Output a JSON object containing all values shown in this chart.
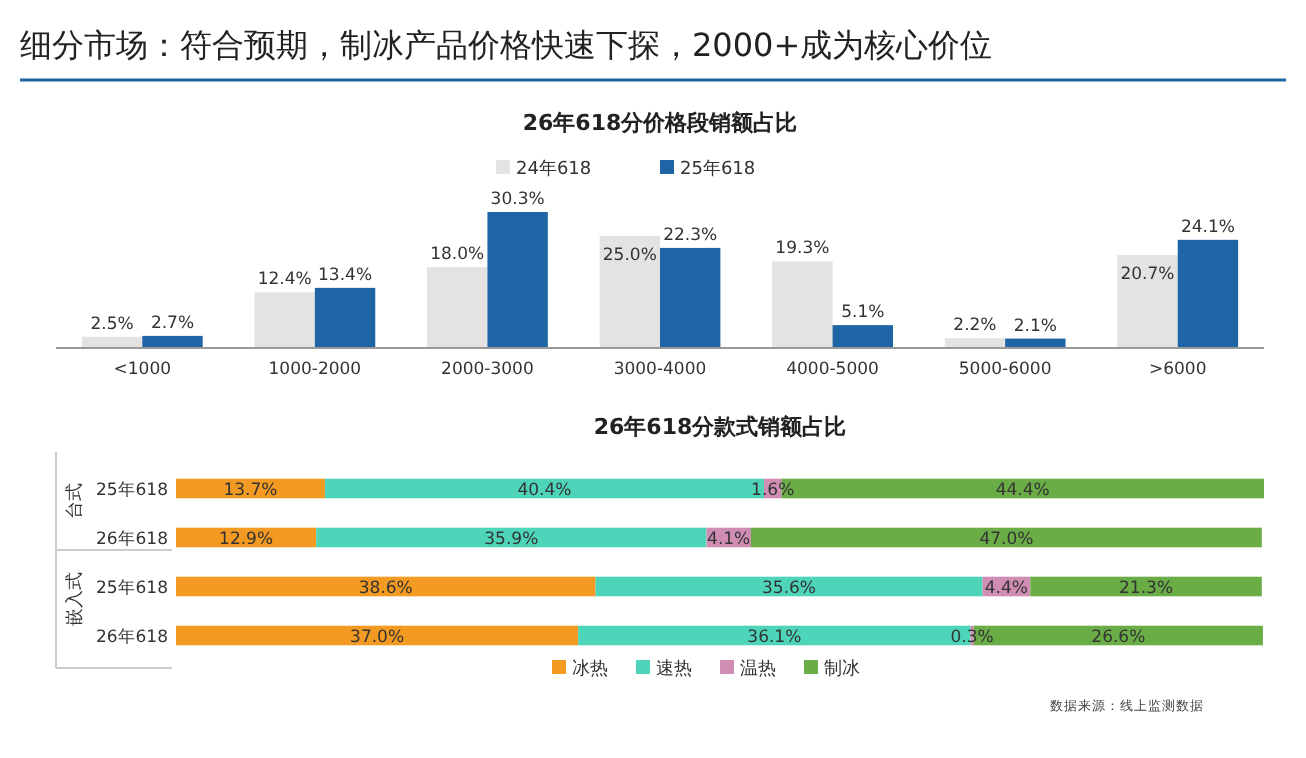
{
  "chart_data": [
    {
      "type": "bar",
      "title": "细分市场：符合预期，制冰产品价格快速下探，2000+成为核心价位",
      "subtitle": "26年618分价格段销额占比",
      "categories": [
        "<1000",
        "1000-2000",
        "2000-3000",
        "3000-4000",
        "4000-5000",
        "5000-6000",
        ">6000"
      ],
      "legend": "top",
      "grid": false,
      "series": [
        {
          "name": "24年618",
          "color": "#e3e3e3",
          "values": [
            2.5,
            12.4,
            18.0,
            25.0,
            19.3,
            2.2,
            20.7
          ],
          "value_labels": [
            "2.5%",
            "12.4%",
            "18.0%",
            "25.0%",
            "19.3%",
            "2.2%",
            "20.7%"
          ]
        },
        {
          "name": "25年618",
          "color": "#1f65a5",
          "values": [
            2.7,
            13.4,
            30.3,
            22.3,
            5.1,
            2.1,
            24.1
          ],
          "value_labels": [
            "2.7%",
            "13.4%",
            "30.3%",
            "22.3%",
            "5.1%",
            "2.1%",
            "24.1%"
          ]
        }
      ]
    },
    {
      "type": "bar",
      "orientation": "horizontal",
      "stacked": true,
      "title": "26年618分款式销额占比",
      "categories": [
        "25年618",
        "26年618",
        "25年618",
        "26年618"
      ],
      "legend": "bottom",
      "annotations": [
        "台式",
        "嵌入式",
        "数据来源：线上监测数据"
      ],
      "series": [
        {
          "name": "冰热",
          "color": "#f29a21",
          "values": [
            13.7,
            12.9,
            38.6,
            37.0
          ],
          "value_labels": [
            "13.7%",
            "12.9%",
            "38.6%",
            "37.0%"
          ]
        },
        {
          "name": "速热",
          "color": "#4ed5b9",
          "values": [
            40.4,
            35.9,
            35.6,
            36.1
          ],
          "value_labels": [
            "40.4%",
            "35.9%",
            "35.6%",
            "36.1%"
          ]
        },
        {
          "name": "温热",
          "color": "#d08db4",
          "values": [
            1.6,
            4.1,
            4.4,
            0.3
          ],
          "value_labels": [
            "1.6%",
            "4.1%",
            "4.4%",
            "0.3%"
          ]
        },
        {
          "name": "制冰",
          "color": "#6aac46",
          "values": [
            44.4,
            47.0,
            21.3,
            26.6
          ],
          "value_labels": [
            "44.4%",
            "47.0%",
            "21.3%",
            "26.6%"
          ]
        }
      ]
    }
  ]
}
